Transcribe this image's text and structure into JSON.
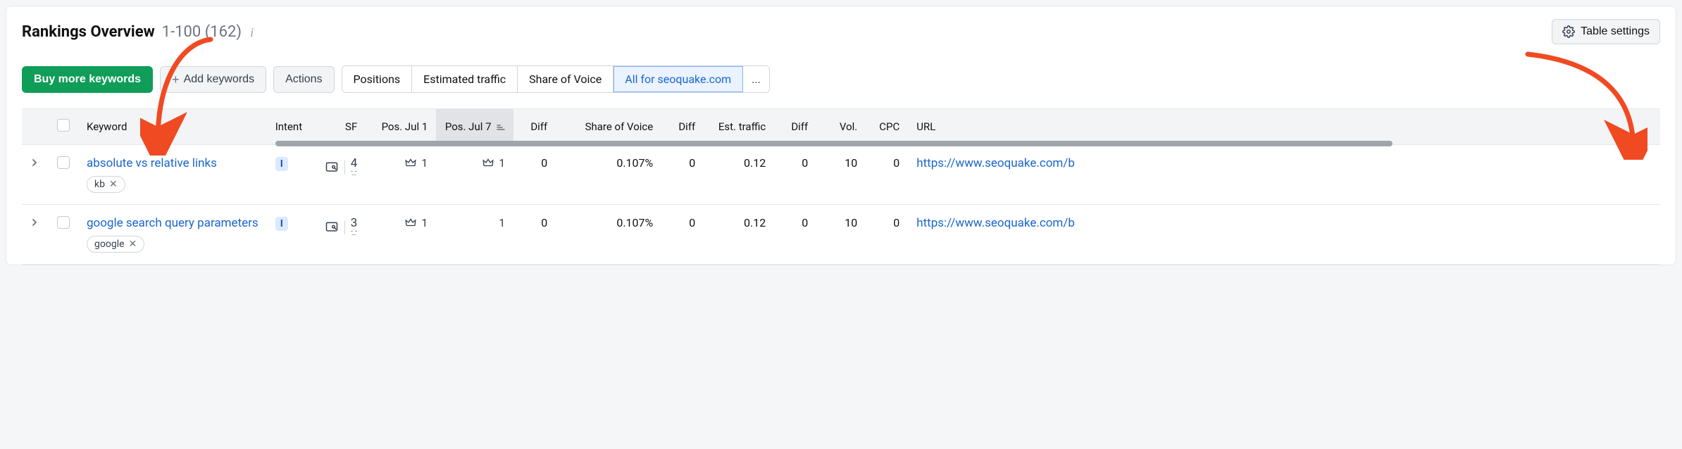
{
  "header": {
    "title": "Rankings Overview",
    "range": "1-100",
    "total": "(162)",
    "table_settings_label": "Table settings"
  },
  "toolbar": {
    "buy_label": "Buy more keywords",
    "add_label": "Add keywords",
    "actions_label": "Actions",
    "tabs": {
      "positions": "Positions",
      "estimated_traffic": "Estimated traffic",
      "share_of_voice": "Share of Voice",
      "all_for": "All for seoquake.com",
      "more": "..."
    }
  },
  "columns": {
    "keyword": "Keyword",
    "intent": "Intent",
    "sf": "SF",
    "pos1": "Pos. Jul 1",
    "pos2": "Pos. Jul 7",
    "diff1": "Diff",
    "sov": "Share of Voice",
    "diff2": "Diff",
    "est": "Est. traffic",
    "diff3": "Diff",
    "vol": "Vol.",
    "cpc": "CPC",
    "url": "URL"
  },
  "rows": [
    {
      "keyword": "absolute vs relative links",
      "tag": "kb",
      "intent": "I",
      "sf": "4",
      "pos1": "1",
      "pos1_crown": true,
      "pos2": "1",
      "pos2_crown": true,
      "diff1": "0",
      "sov": "0.107%",
      "diff2": "0",
      "est": "0.12",
      "diff3": "0",
      "vol": "10",
      "cpc": "0",
      "url": "https://www.seoquake.com/b"
    },
    {
      "keyword": "google search query parameters",
      "tag": "google",
      "intent": "I",
      "sf": "3",
      "pos1": "1",
      "pos1_crown": true,
      "pos2": "1",
      "pos2_crown": false,
      "diff1": "0",
      "sov": "0.107%",
      "diff2": "0",
      "est": "0.12",
      "diff3": "0",
      "vol": "10",
      "cpc": "0",
      "url": "https://www.seoquake.com/b"
    }
  ],
  "style": {
    "accent_green": "#0f9d58",
    "link_blue": "#1a66cc",
    "intent_bg": "#dbeafe",
    "intent_fg": "#1d4ed8",
    "border": "#e5e7eb",
    "header_bg": "#f3f4f6",
    "sorted_bg": "#e2e3e6",
    "annotation_color": "#f04a23",
    "scroll_thumb": "#a0a4ab"
  }
}
